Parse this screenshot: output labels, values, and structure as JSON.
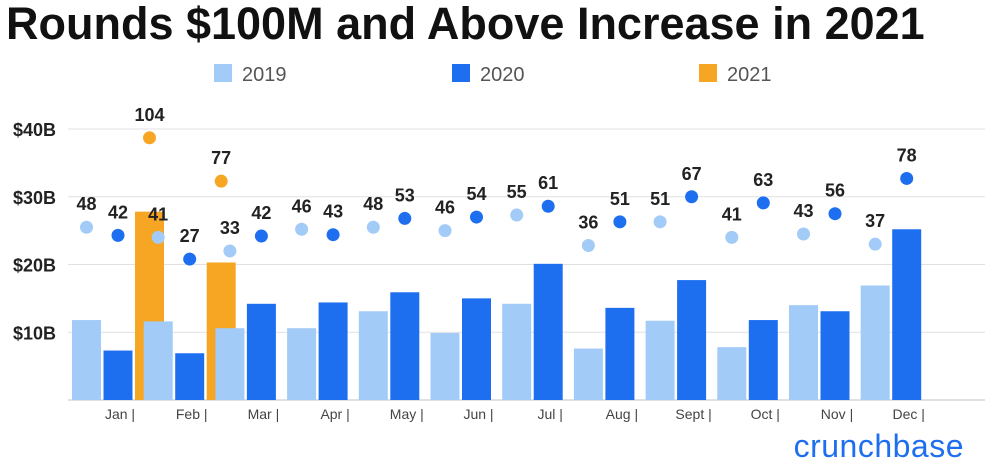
{
  "title": "Rounds $100M and Above Increase in 2021",
  "brand": "crunchbase",
  "colors": {
    "s2019": "#a3cbf7",
    "s2020": "#1e6ff0",
    "s2021": "#f6a623",
    "text": "#222222",
    "tick": "#444444",
    "grid": "#e1e1e1",
    "brand": "#1e6ff0"
  },
  "chart_data": {
    "type": "bar",
    "title": "Rounds $100M and Above Increase in 2021",
    "categories": [
      "Jan |",
      "Feb |",
      "Mar |",
      "Apr |",
      "May |",
      "Jun |",
      "Jul |",
      "Aug |",
      "Sept |",
      "Oct |",
      "Nov |",
      "Dec |"
    ],
    "ylim": [
      0,
      40
    ],
    "yticks": [
      {
        "value": 10,
        "label": "$10B"
      },
      {
        "value": 20,
        "label": "$20B"
      },
      {
        "value": 30,
        "label": "$30B"
      },
      {
        "value": 40,
        "label": "$40B"
      }
    ],
    "ylabel": "",
    "xlabel": "",
    "legend": "top-center",
    "series": [
      {
        "name": "2019",
        "funding_billions": [
          11.8,
          11.6,
          10.6,
          10.6,
          13.1,
          9.9,
          14.2,
          7.6,
          11.7,
          7.8,
          14.0,
          16.9
        ],
        "round_counts": [
          48,
          41,
          33,
          46,
          48,
          46,
          55,
          36,
          51,
          41,
          43,
          37
        ],
        "count_marker_level_billions": [
          25.5,
          24.0,
          22.0,
          25.2,
          25.5,
          25.0,
          27.3,
          22.8,
          26.3,
          24.0,
          24.5,
          23.0
        ]
      },
      {
        "name": "2020",
        "funding_billions": [
          7.3,
          6.9,
          14.2,
          14.4,
          15.9,
          15.0,
          20.1,
          13.6,
          17.7,
          11.8,
          13.1,
          25.2
        ],
        "round_counts": [
          42,
          27,
          42,
          43,
          53,
          54,
          61,
          51,
          67,
          63,
          56,
          78
        ],
        "count_marker_level_billions": [
          24.3,
          20.8,
          24.2,
          24.4,
          26.8,
          27.0,
          28.6,
          26.3,
          30.0,
          29.1,
          27.5,
          32.7
        ]
      },
      {
        "name": "2021",
        "funding_billions": [
          27.8,
          20.3,
          null,
          null,
          null,
          null,
          null,
          null,
          null,
          null,
          null,
          null
        ],
        "round_counts": [
          104,
          77,
          null,
          null,
          null,
          null,
          null,
          null,
          null,
          null,
          null,
          null
        ],
        "count_marker_level_billions": [
          38.7,
          32.3,
          null,
          null,
          null,
          null,
          null,
          null,
          null,
          null,
          null,
          null
        ]
      }
    ]
  }
}
